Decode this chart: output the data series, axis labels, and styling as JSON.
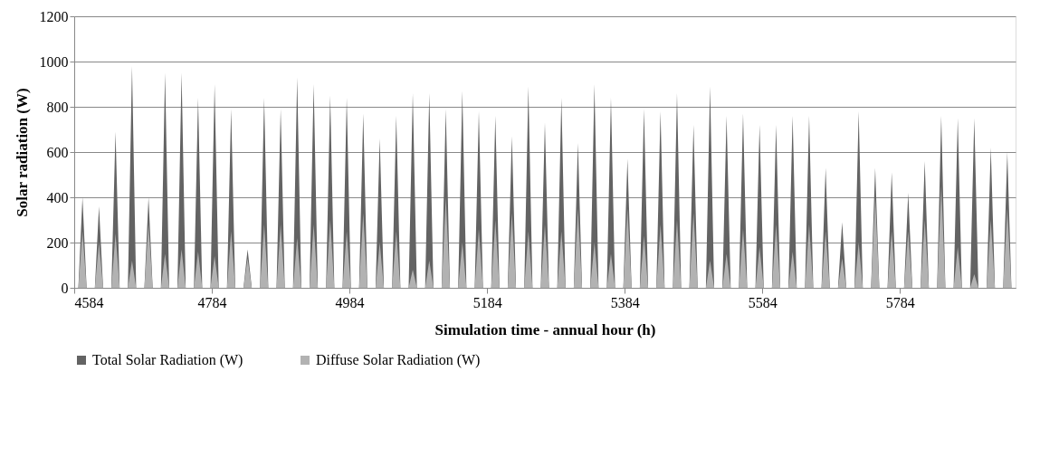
{
  "chart_data": {
    "type": "area",
    "xlabel": "Simulation time - annual hour (h)",
    "ylabel": "Solar radiation (W)",
    "xlim": [
      4584,
      5952
    ],
    "xticks": [
      4584,
      4784,
      4984,
      5184,
      5384,
      5584,
      5784
    ],
    "ylim": [
      0,
      1200
    ],
    "yticks": [
      0,
      200,
      400,
      600,
      800,
      1000,
      1200
    ],
    "grid": "y",
    "legend": "bottom",
    "x": [
      4590,
      4596,
      4602,
      4614,
      4620,
      4626,
      4638,
      4644,
      4650,
      4662,
      4668,
      4674,
      4686,
      4692,
      4698,
      4710,
      4716,
      4722,
      4734,
      4740,
      4746,
      4758,
      4764,
      4770,
      4782,
      4788,
      4794,
      4806,
      4812,
      4818,
      4830,
      4836,
      4842,
      4854,
      4860,
      4866,
      4878,
      4884,
      4890,
      4902,
      4908,
      4914,
      4926,
      4932,
      4938,
      4950,
      4956,
      4962,
      4974,
      4980,
      4986,
      4998,
      5004,
      5010,
      5022,
      5028,
      5034,
      5046,
      5052,
      5058,
      5070,
      5076,
      5082,
      5094,
      5100,
      5106,
      5118,
      5124,
      5130,
      5142,
      5148,
      5154,
      5166,
      5172,
      5178,
      5190,
      5196,
      5202,
      5214,
      5220,
      5226,
      5238,
      5244,
      5250,
      5262,
      5268,
      5274,
      5286,
      5292,
      5298,
      5310,
      5316,
      5322,
      5334,
      5340,
      5346,
      5358,
      5364,
      5370,
      5382,
      5388,
      5394,
      5406,
      5412,
      5418,
      5430,
      5436,
      5442,
      5454,
      5460,
      5466,
      5478,
      5484,
      5490,
      5502,
      5508,
      5514,
      5526,
      5532,
      5538,
      5550,
      5556,
      5562,
      5574,
      5580,
      5586,
      5598,
      5604,
      5610,
      5622,
      5628,
      5634,
      5646,
      5652,
      5658,
      5670,
      5676,
      5682,
      5694,
      5700,
      5706,
      5718,
      5724,
      5730,
      5742,
      5748,
      5754,
      5766,
      5772,
      5778,
      5790,
      5796,
      5802,
      5814,
      5820,
      5826,
      5838,
      5844,
      5850,
      5862,
      5868,
      5874,
      5886,
      5892,
      5898,
      5910,
      5916,
      5922,
      5934,
      5940,
      5946
    ],
    "series": [
      {
        "name": "Total Solar Radiation (W)",
        "color": "#636363",
        "values": [
          0,
          400,
          0,
          0,
          360,
          0,
          0,
          690,
          0,
          0,
          980,
          0,
          0,
          400,
          0,
          0,
          950,
          0,
          0,
          950,
          0,
          0,
          840,
          0,
          0,
          900,
          0,
          0,
          790,
          0,
          0,
          170,
          0,
          0,
          840,
          0,
          0,
          790,
          0,
          0,
          930,
          0,
          0,
          900,
          0,
          0,
          850,
          0,
          0,
          840,
          0,
          0,
          770,
          0,
          0,
          660,
          0,
          0,
          760,
          0,
          0,
          860,
          0,
          0,
          860,
          0,
          0,
          790,
          0,
          0,
          870,
          0,
          0,
          780,
          0,
          0,
          760,
          0,
          0,
          670,
          0,
          0,
          890,
          0,
          0,
          730,
          0,
          0,
          840,
          0,
          0,
          640,
          0,
          0,
          900,
          0,
          0,
          840,
          0,
          0,
          570,
          0,
          0,
          790,
          0,
          0,
          780,
          0,
          0,
          860,
          0,
          0,
          720,
          0,
          0,
          890,
          0,
          0,
          760,
          0,
          0,
          770,
          0,
          0,
          720,
          0,
          0,
          720,
          0,
          0,
          760,
          0,
          0,
          760,
          0,
          0,
          530,
          0,
          0,
          290,
          0,
          0,
          780,
          0,
          0,
          530,
          0,
          0,
          510,
          0,
          0,
          420,
          0,
          0,
          560,
          0,
          0,
          760,
          0,
          0,
          750,
          0,
          0,
          750,
          0,
          0,
          620,
          0,
          0,
          600,
          0
        ]
      },
      {
        "name": "Diffuse Solar Radiation (W)",
        "color": "#b2b2b2",
        "values": [
          0,
          250,
          0,
          0,
          200,
          0,
          0,
          240,
          0,
          0,
          120,
          0,
          0,
          280,
          0,
          0,
          150,
          0,
          0,
          170,
          0,
          0,
          160,
          0,
          0,
          140,
          0,
          0,
          250,
          0,
          0,
          130,
          0,
          0,
          280,
          0,
          0,
          280,
          0,
          0,
          220,
          0,
          0,
          280,
          0,
          0,
          300,
          0,
          0,
          250,
          0,
          0,
          330,
          0,
          0,
          200,
          0,
          0,
          250,
          0,
          0,
          80,
          0,
          0,
          120,
          0,
          0,
          400,
          0,
          0,
          200,
          0,
          0,
          260,
          0,
          0,
          300,
          0,
          0,
          330,
          0,
          0,
          250,
          0,
          0,
          280,
          0,
          0,
          250,
          0,
          0,
          350,
          0,
          0,
          200,
          0,
          0,
          150,
          0,
          0,
          350,
          0,
          0,
          230,
          0,
          0,
          280,
          0,
          0,
          300,
          0,
          0,
          330,
          0,
          0,
          120,
          0,
          0,
          150,
          0,
          0,
          260,
          0,
          0,
          180,
          0,
          0,
          280,
          0,
          0,
          160,
          0,
          0,
          280,
          0,
          0,
          250,
          0,
          0,
          130,
          0,
          0,
          200,
          0,
          0,
          400,
          0,
          0,
          250,
          0,
          0,
          250,
          0,
          0,
          300,
          0,
          0,
          450,
          0,
          0,
          180,
          0,
          0,
          60,
          0,
          0,
          300,
          0,
          0,
          350,
          0
        ]
      }
    ]
  }
}
